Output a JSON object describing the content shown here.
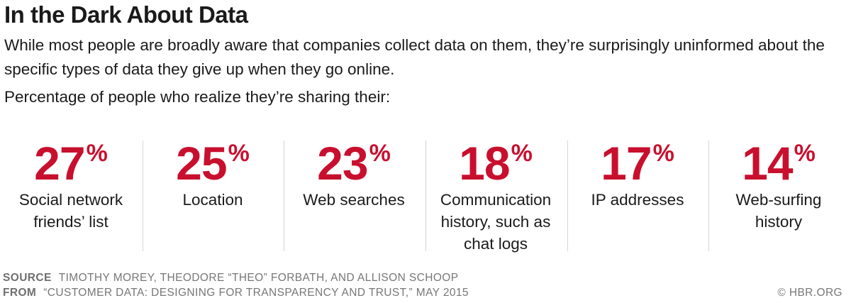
{
  "chart_data": {
    "type": "table",
    "title": "In the Dark About Data",
    "subtitle": "While most people are broadly aware that companies collect data on them, they’re surprisingly uninformed about the specific types of data they give up when they go online.",
    "lead": "Percentage of people who realize they’re sharing their:",
    "categories": [
      "Social network friends’ list",
      "Location",
      "Web searches",
      "Communication history, such as chat logs",
      "IP addresses",
      "Web-surfing history"
    ],
    "values": [
      27,
      25,
      23,
      18,
      17,
      14
    ],
    "unit": "%",
    "accent_color": "#c8102e",
    "stats": [
      {
        "value": "27",
        "unit": "%",
        "label": "Social network friends’ list"
      },
      {
        "value": "25",
        "unit": "%",
        "label": "Location"
      },
      {
        "value": "23",
        "unit": "%",
        "label": "Web searches"
      },
      {
        "value": "18",
        "unit": "%",
        "label": "Communication history, such as chat logs"
      },
      {
        "value": "17",
        "unit": "%",
        "label": "IP addresses"
      },
      {
        "value": "14",
        "unit": "%",
        "label": "Web-surfing history"
      }
    ]
  },
  "footer": {
    "source_key": "SOURCE",
    "source_text": "TIMOTHY MOREY, THEODORE “THEO” FORBATH, AND ALLISON SCHOOP",
    "from_key": "FROM",
    "from_text": "“CUSTOMER DATA: DESIGNING FOR TRANSPARENCY AND TRUST,” MAY 2015",
    "credit": "© HBR.ORG"
  }
}
